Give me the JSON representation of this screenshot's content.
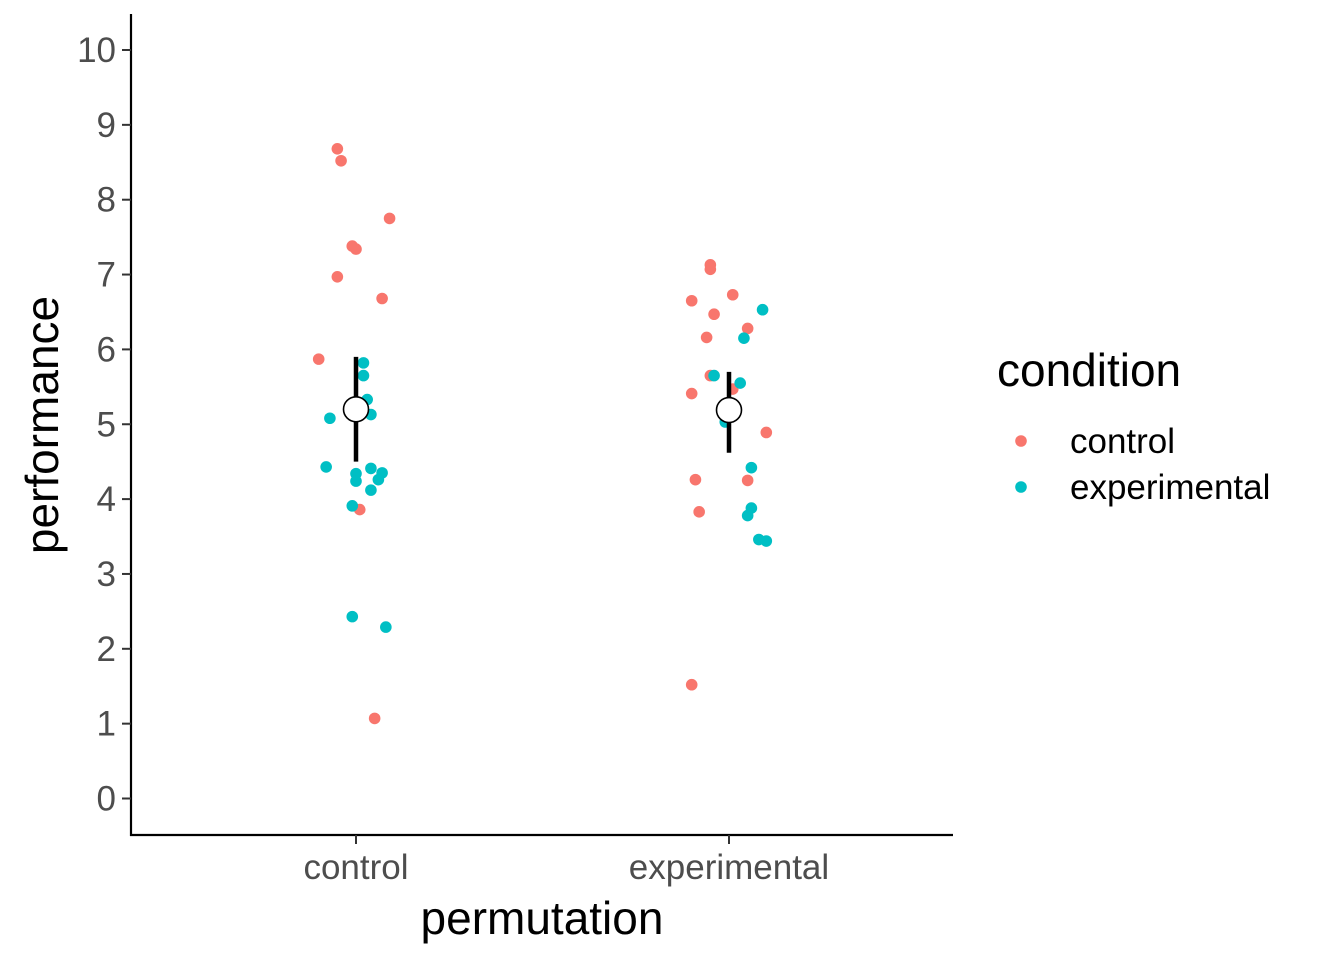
{
  "chart_data": {
    "type": "scatter",
    "title": "",
    "xlabel": "permutation",
    "ylabel": "performance",
    "categories": [
      "control",
      "experimental"
    ],
    "ylim": [
      -0.5,
      10.5
    ],
    "yticks": [
      0,
      1,
      2,
      3,
      4,
      5,
      6,
      7,
      8,
      9,
      10
    ],
    "grid": false,
    "legend": {
      "title": "condition",
      "position": "right",
      "entries": [
        {
          "name": "control",
          "color": "#F8766D"
        },
        {
          "name": "experimental",
          "color": "#00BFC4"
        }
      ]
    },
    "series": [
      {
        "name": "control",
        "color": "#F8766D",
        "points": [
          {
            "x": "control",
            "jitter": -0.05,
            "y": 8.68
          },
          {
            "x": "control",
            "jitter": -0.04,
            "y": 8.52
          },
          {
            "x": "control",
            "jitter": 0.09,
            "y": 7.75
          },
          {
            "x": "control",
            "jitter": -0.01,
            "y": 7.38
          },
          {
            "x": "control",
            "jitter": 0.0,
            "y": 7.34
          },
          {
            "x": "control",
            "jitter": -0.05,
            "y": 6.97
          },
          {
            "x": "control",
            "jitter": 0.07,
            "y": 6.68
          },
          {
            "x": "control",
            "jitter": -0.1,
            "y": 5.87
          },
          {
            "x": "control",
            "jitter": 0.01,
            "y": 3.86
          },
          {
            "x": "control",
            "jitter": 0.05,
            "y": 1.07
          },
          {
            "x": "experimental",
            "jitter": -0.05,
            "y": 7.13
          },
          {
            "x": "experimental",
            "jitter": -0.05,
            "y": 7.07
          },
          {
            "x": "experimental",
            "jitter": 0.01,
            "y": 6.73
          },
          {
            "x": "experimental",
            "jitter": -0.1,
            "y": 6.65
          },
          {
            "x": "experimental",
            "jitter": -0.04,
            "y": 6.47
          },
          {
            "x": "experimental",
            "jitter": 0.05,
            "y": 6.28
          },
          {
            "x": "experimental",
            "jitter": -0.06,
            "y": 6.16
          },
          {
            "x": "experimental",
            "jitter": -0.05,
            "y": 5.65
          },
          {
            "x": "experimental",
            "jitter": 0.01,
            "y": 5.47
          },
          {
            "x": "experimental",
            "jitter": -0.1,
            "y": 5.41
          },
          {
            "x": "experimental",
            "jitter": 0.1,
            "y": 4.89
          },
          {
            "x": "experimental",
            "jitter": -0.09,
            "y": 4.26
          },
          {
            "x": "experimental",
            "jitter": 0.05,
            "y": 4.25
          },
          {
            "x": "experimental",
            "jitter": -0.08,
            "y": 3.83
          },
          {
            "x": "experimental",
            "jitter": -0.1,
            "y": 1.52
          }
        ]
      },
      {
        "name": "experimental",
        "color": "#00BFC4",
        "points": [
          {
            "x": "control",
            "jitter": 0.02,
            "y": 5.82
          },
          {
            "x": "control",
            "jitter": 0.02,
            "y": 5.65
          },
          {
            "x": "control",
            "jitter": 0.03,
            "y": 5.33
          },
          {
            "x": "control",
            "jitter": 0.04,
            "y": 5.13
          },
          {
            "x": "control",
            "jitter": -0.07,
            "y": 5.08
          },
          {
            "x": "control",
            "jitter": -0.08,
            "y": 4.43
          },
          {
            "x": "control",
            "jitter": 0.04,
            "y": 4.41
          },
          {
            "x": "control",
            "jitter": 0.07,
            "y": 4.35
          },
          {
            "x": "control",
            "jitter": 0.0,
            "y": 4.34
          },
          {
            "x": "control",
            "jitter": 0.06,
            "y": 4.26
          },
          {
            "x": "control",
            "jitter": 0.0,
            "y": 4.24
          },
          {
            "x": "control",
            "jitter": 0.04,
            "y": 4.12
          },
          {
            "x": "control",
            "jitter": -0.01,
            "y": 3.91
          },
          {
            "x": "control",
            "jitter": -0.01,
            "y": 2.43
          },
          {
            "x": "control",
            "jitter": 0.08,
            "y": 2.29
          },
          {
            "x": "experimental",
            "jitter": 0.09,
            "y": 6.53
          },
          {
            "x": "experimental",
            "jitter": 0.04,
            "y": 6.15
          },
          {
            "x": "experimental",
            "jitter": -0.04,
            "y": 5.65
          },
          {
            "x": "experimental",
            "jitter": 0.03,
            "y": 5.55
          },
          {
            "x": "experimental",
            "jitter": -0.01,
            "y": 5.03
          },
          {
            "x": "experimental",
            "jitter": 0.06,
            "y": 4.42
          },
          {
            "x": "experimental",
            "jitter": 0.06,
            "y": 3.88
          },
          {
            "x": "experimental",
            "jitter": 0.05,
            "y": 3.78
          },
          {
            "x": "experimental",
            "jitter": 0.08,
            "y": 3.46
          },
          {
            "x": "experimental",
            "jitter": 0.1,
            "y": 3.44
          }
        ]
      }
    ],
    "summary": [
      {
        "x": "control",
        "mean": 5.2,
        "lower": 4.5,
        "upper": 5.9
      },
      {
        "x": "experimental",
        "mean": 5.19,
        "lower": 4.62,
        "upper": 5.7
      }
    ]
  }
}
